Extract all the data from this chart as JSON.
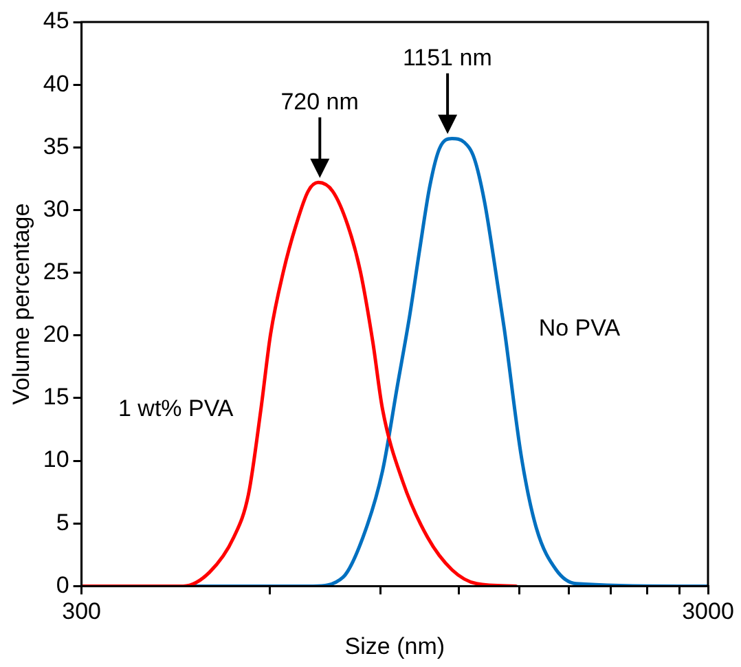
{
  "chart_data": {
    "type": "line",
    "xlabel": "Size (nm)",
    "ylabel": "Volume percentage",
    "log": "x",
    "xlim": [
      300,
      3000
    ],
    "xticks": [
      300,
      {
        "value": 600,
        "label": null
      },
      {
        "value": 900,
        "label": null
      },
      {
        "value": 1200,
        "label": null
      },
      {
        "value": 1500,
        "label": null
      },
      {
        "value": 1800,
        "label": null
      },
      {
        "value": 2100,
        "label": null
      },
      {
        "value": 2400,
        "label": null
      },
      {
        "value": 2700,
        "label": null
      },
      3000
    ],
    "ylim": [
      0,
      45
    ],
    "yticks": [
      0,
      5,
      10,
      15,
      20,
      25,
      30,
      35,
      40,
      45
    ],
    "marker": "none",
    "line_style": "solid",
    "series": [
      {
        "name": "1 wt% PVA",
        "color": "#ff0000",
        "x": [
          300,
          436,
          480,
          525,
          554,
          580,
          601,
          630,
          660,
          690,
          716,
          755,
          798,
          836,
          875,
          907,
          976,
          1070,
          1171,
          1282,
          1482
        ],
        "values": [
          0,
          0,
          1.1,
          3.9,
          7.3,
          14.1,
          20.1,
          25.1,
          28.8,
          31.5,
          32.2,
          31.5,
          28.8,
          25.1,
          19.5,
          14.1,
          8.4,
          3.9,
          1.3,
          0.2,
          0
        ]
      },
      {
        "name": "No PVA",
        "color": "#0070c0",
        "x": [
          300,
          703,
          784,
          844,
          907,
          958,
          1003,
          1040,
          1079,
          1118,
          1171,
          1225,
          1271,
          1319,
          1368,
          1419,
          1511,
          1597,
          1717,
          1848,
          2703,
          3000
        ],
        "values": [
          0,
          0,
          0.7,
          3.9,
          9.2,
          16,
          21.7,
          26.9,
          31.9,
          34.9,
          35.7,
          35.4,
          34.1,
          30.7,
          25.8,
          20.5,
          10.3,
          4.6,
          1.3,
          0.2,
          0,
          0
        ]
      }
    ],
    "annotations": [
      {
        "text": "720 nm",
        "x": 720,
        "y": 32.2
      },
      {
        "text": "1151 nm",
        "x": 1151,
        "y": 35.7
      }
    ]
  }
}
